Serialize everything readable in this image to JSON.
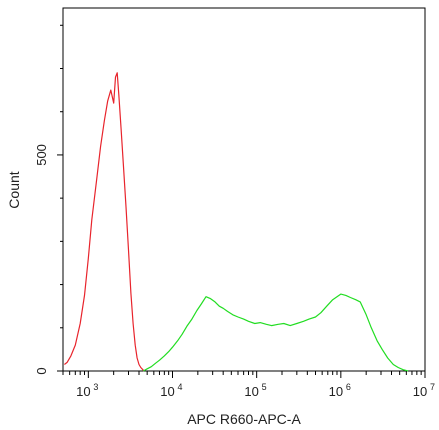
{
  "chart_data": {
    "type": "line",
    "title": "",
    "xlabel": "APC R660-APC-A",
    "ylabel": "Count",
    "x_scale": "log",
    "xlim": [
      500,
      10000000
    ],
    "ylim": [
      0,
      840
    ],
    "x_ticks": [
      {
        "value": 1000,
        "base": "10",
        "exp": "3"
      },
      {
        "value": 10000,
        "base": "10",
        "exp": "4"
      },
      {
        "value": 100000,
        "base": "10",
        "exp": "5"
      },
      {
        "value": 1000000,
        "base": "10",
        "exp": "6"
      },
      {
        "value": 10000000,
        "base": "10",
        "exp": "7"
      }
    ],
    "y_ticks": [
      {
        "value": 0,
        "label": "0"
      },
      {
        "value": 500,
        "label": "500"
      }
    ],
    "series": [
      {
        "color": "#e8242c",
        "x": [
          520,
          560,
          620,
          700,
          800,
          900,
          1000,
          1100,
          1250,
          1400,
          1550,
          1700,
          1850,
          2000,
          2100,
          2200,
          2300,
          2450,
          2600,
          2800,
          3000,
          3200,
          3400,
          3600,
          3800,
          4000,
          4200,
          4400,
          4600
        ],
        "y": [
          15,
          20,
          35,
          60,
          110,
          175,
          260,
          350,
          440,
          520,
          580,
          625,
          650,
          620,
          680,
          690,
          640,
          560,
          480,
          380,
          280,
          180,
          110,
          60,
          30,
          15,
          8,
          4,
          0
        ]
      },
      {
        "color": "#22dd22",
        "x": [
          4500,
          5000,
          5600,
          6300,
          7000,
          8000,
          9000,
          10000,
          11500,
          13000,
          15000,
          17000,
          19500,
          22000,
          25000,
          28000,
          32000,
          36000,
          40000,
          45000,
          52000,
          60000,
          70000,
          80000,
          95000,
          110000,
          130000,
          150000,
          180000,
          210000,
          250000,
          300000,
          360000,
          420000,
          500000,
          580000,
          680000,
          800000,
          900000,
          1000000,
          1150000,
          1300000,
          1500000,
          1700000,
          2000000,
          2300000,
          2700000,
          3100000,
          3600000,
          4200000,
          4800000,
          5500000,
          6300000
        ],
        "y": [
          0,
          5,
          10,
          18,
          25,
          35,
          45,
          55,
          70,
          85,
          105,
          120,
          140,
          155,
          172,
          168,
          160,
          150,
          145,
          138,
          130,
          125,
          120,
          115,
          110,
          112,
          108,
          105,
          108,
          110,
          105,
          110,
          115,
          120,
          125,
          135,
          150,
          165,
          172,
          178,
          175,
          170,
          165,
          160,
          130,
          100,
          70,
          50,
          30,
          15,
          8,
          3,
          0
        ]
      }
    ]
  }
}
